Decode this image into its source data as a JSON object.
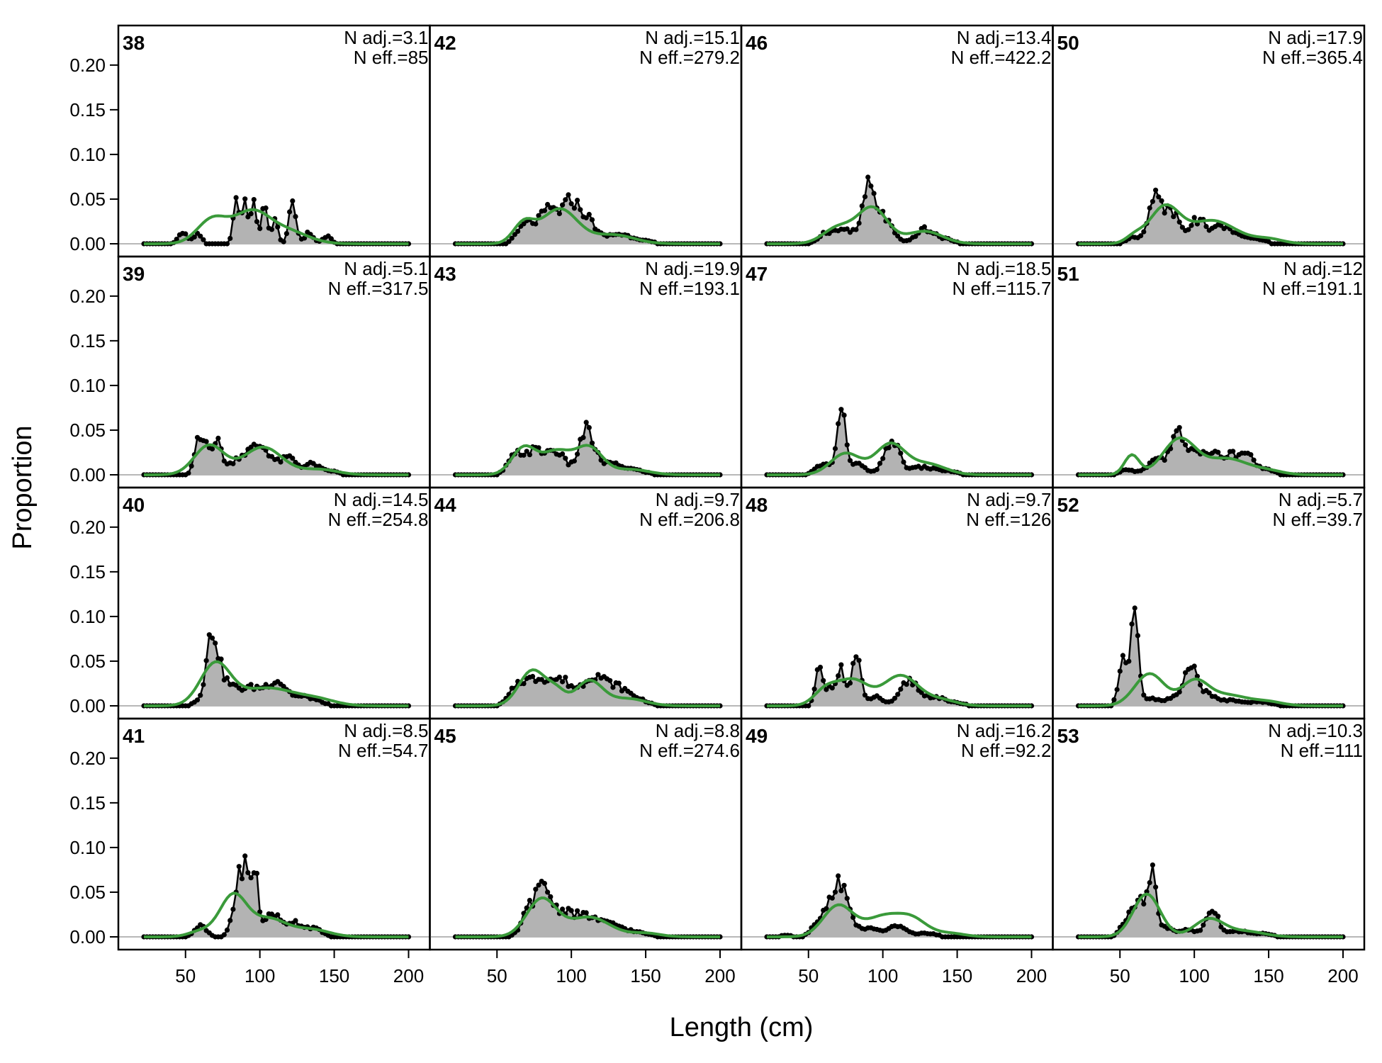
{
  "chart_data": {
    "type": "line",
    "xlabel": "Length (cm)",
    "ylabel": "Proportion",
    "xlim": [
      22,
      200
    ],
    "ylim": [
      0,
      0.23
    ],
    "x_ticks": [
      50,
      100,
      150,
      200
    ],
    "x_tick_labels": [
      "50",
      "100",
      "150",
      "200"
    ],
    "y_ticks": [
      0,
      0.05,
      0.1,
      0.15,
      0.2
    ],
    "y_tick_labels": [
      "0.00",
      "0.05",
      "0.10",
      "0.15",
      "0.20"
    ],
    "panel_columns": 4,
    "panel_rows": 4,
    "colors": {
      "observed_fill": "#b3b3b3",
      "observed_line": "#000000",
      "expected_line": "#3a9a3a",
      "zero_line": "#b8b8b8",
      "frame": "#000000"
    },
    "panels": [
      {
        "id": "38",
        "n_adj": "N adj.=3.1",
        "n_eff": "N eff.=85",
        "observed_peaks": [
          [
            48,
            0.012,
            3
          ],
          [
            58,
            0.01,
            3
          ],
          [
            84,
            0.05,
            2
          ],
          [
            90,
            0.048,
            2
          ],
          [
            96,
            0.042,
            2
          ],
          [
            103,
            0.04,
            2
          ],
          [
            110,
            0.028,
            2
          ],
          [
            122,
            0.042,
            2.5
          ],
          [
            133,
            0.012,
            3
          ],
          [
            145,
            0.008,
            3
          ]
        ],
        "expected_peaks": [
          [
            68,
            0.027,
            10
          ],
          [
            94,
            0.034,
            12
          ],
          [
            118,
            0.014,
            14
          ]
        ]
      },
      {
        "id": "39",
        "n_adj": "N adj.=5.1",
        "n_eff": "N eff.=317.5",
        "observed_peaks": [
          [
            58,
            0.025,
            2.5
          ],
          [
            64,
            0.035,
            4
          ],
          [
            72,
            0.03,
            3
          ],
          [
            85,
            0.014,
            6
          ],
          [
            100,
            0.032,
            8
          ],
          [
            120,
            0.018,
            5
          ],
          [
            135,
            0.012,
            5
          ],
          [
            148,
            0.004,
            5
          ]
        ],
        "expected_peaks": [
          [
            66,
            0.033,
            10
          ],
          [
            102,
            0.031,
            13
          ],
          [
            140,
            0.006,
            12
          ]
        ]
      },
      {
        "id": "40",
        "n_adj": "N adj.=14.5",
        "n_eff": "N eff.=254.8",
        "observed_peaks": [
          [
            68,
            0.058,
            3.5
          ],
          [
            72,
            0.03,
            8
          ],
          [
            95,
            0.02,
            10
          ],
          [
            112,
            0.022,
            6
          ],
          [
            130,
            0.01,
            9
          ]
        ],
        "expected_peaks": [
          [
            70,
            0.045,
            10
          ],
          [
            105,
            0.02,
            20
          ],
          [
            140,
            0.005,
            12
          ]
        ]
      },
      {
        "id": "41",
        "n_adj": "N adj.=8.5",
        "n_eff": "N eff.=54.7",
        "observed_peaks": [
          [
            60,
            0.012,
            4
          ],
          [
            86,
            0.055,
            4
          ],
          [
            91,
            0.05,
            3
          ],
          [
            97,
            0.07,
            2
          ],
          [
            108,
            0.027,
            5
          ],
          [
            122,
            0.016,
            5
          ],
          [
            135,
            0.01,
            6
          ]
        ],
        "expected_peaks": [
          [
            60,
            0.006,
            8
          ],
          [
            82,
            0.046,
            9
          ],
          [
            106,
            0.02,
            12
          ],
          [
            135,
            0.008,
            12
          ]
        ]
      },
      {
        "id": "42",
        "n_adj": "N adj.=15.1",
        "n_eff": "N eff.=279.2",
        "observed_peaks": [
          [
            70,
            0.022,
            6
          ],
          [
            85,
            0.036,
            6
          ],
          [
            100,
            0.046,
            6
          ],
          [
            112,
            0.022,
            5
          ],
          [
            130,
            0.01,
            8
          ],
          [
            145,
            0.004,
            8
          ]
        ],
        "expected_peaks": [
          [
            68,
            0.022,
            7
          ],
          [
            92,
            0.039,
            12
          ],
          [
            128,
            0.01,
            14
          ]
        ]
      },
      {
        "id": "43",
        "n_adj": "N adj.=19.9",
        "n_eff": "N eff.=193.1",
        "observed_peaks": [
          [
            62,
            0.018,
            5
          ],
          [
            75,
            0.026,
            7
          ],
          [
            90,
            0.024,
            6
          ],
          [
            110,
            0.048,
            5
          ],
          [
            125,
            0.012,
            8
          ],
          [
            142,
            0.005,
            8
          ]
        ],
        "expected_peaks": [
          [
            68,
            0.03,
            8
          ],
          [
            90,
            0.026,
            10
          ],
          [
            112,
            0.03,
            9
          ],
          [
            140,
            0.006,
            12
          ]
        ]
      },
      {
        "id": "44",
        "n_adj": "N adj.=9.7",
        "n_eff": "N eff.=206.8",
        "observed_peaks": [
          [
            65,
            0.022,
            6
          ],
          [
            80,
            0.03,
            8
          ],
          [
            95,
            0.022,
            6
          ],
          [
            115,
            0.034,
            8
          ],
          [
            132,
            0.018,
            7
          ],
          [
            146,
            0.006,
            6
          ]
        ],
        "expected_peaks": [
          [
            74,
            0.04,
            9
          ],
          [
            90,
            0.014,
            6
          ],
          [
            112,
            0.028,
            9
          ],
          [
            138,
            0.008,
            12
          ]
        ]
      },
      {
        "id": "45",
        "n_adj": "N adj.=8.8",
        "n_eff": "N eff.=274.6",
        "observed_peaks": [
          [
            72,
            0.03,
            5
          ],
          [
            82,
            0.05,
            5
          ],
          [
            95,
            0.025,
            6
          ],
          [
            110,
            0.022,
            8
          ],
          [
            128,
            0.012,
            8
          ],
          [
            145,
            0.004,
            8
          ]
        ],
        "expected_peaks": [
          [
            80,
            0.042,
            10
          ],
          [
            112,
            0.022,
            14
          ],
          [
            150,
            0.004,
            10
          ]
        ]
      },
      {
        "id": "46",
        "n_adj": "N adj.=13.4",
        "n_eff": "N eff.=422.2",
        "observed_peaks": [
          [
            62,
            0.012,
            5
          ],
          [
            75,
            0.016,
            6
          ],
          [
            90,
            0.056,
            4
          ],
          [
            100,
            0.03,
            6
          ],
          [
            128,
            0.016,
            6
          ],
          [
            142,
            0.005,
            6
          ]
        ],
        "expected_peaks": [
          [
            70,
            0.018,
            10
          ],
          [
            93,
            0.04,
            10
          ],
          [
            128,
            0.014,
            12
          ]
        ]
      },
      {
        "id": "47",
        "n_adj": "N adj.=18.5",
        "n_eff": "N eff.=115.7",
        "observed_peaks": [
          [
            60,
            0.012,
            5
          ],
          [
            72,
            0.065,
            3
          ],
          [
            82,
            0.012,
            6
          ],
          [
            106,
            0.038,
            5
          ],
          [
            125,
            0.008,
            8
          ],
          [
            142,
            0.004,
            8
          ]
        ],
        "expected_peaks": [
          [
            75,
            0.024,
            10
          ],
          [
            105,
            0.034,
            10
          ],
          [
            130,
            0.012,
            12
          ]
        ]
      },
      {
        "id": "48",
        "n_adj": "N adj.=9.7",
        "n_eff": "N eff.=126",
        "observed_peaks": [
          [
            57,
            0.038,
            2.5
          ],
          [
            65,
            0.02,
            4
          ],
          [
            72,
            0.035,
            3
          ],
          [
            82,
            0.055,
            3
          ],
          [
            95,
            0.01,
            5
          ],
          [
            118,
            0.028,
            6
          ],
          [
            135,
            0.01,
            6
          ],
          [
            150,
            0.003,
            6
          ]
        ],
        "expected_peaks": [
          [
            62,
            0.018,
            8
          ],
          [
            80,
            0.028,
            10
          ],
          [
            112,
            0.034,
            12
          ],
          [
            140,
            0.006,
            10
          ]
        ]
      },
      {
        "id": "49",
        "n_adj": "N adj.=16.2",
        "n_eff": "N eff.=92.2",
        "observed_peaks": [
          [
            35,
            0.002,
            4
          ],
          [
            58,
            0.02,
            5
          ],
          [
            70,
            0.06,
            5
          ],
          [
            80,
            0.012,
            6
          ],
          [
            95,
            0.008,
            6
          ],
          [
            110,
            0.012,
            5
          ],
          [
            128,
            0.004,
            8
          ]
        ],
        "expected_peaks": [
          [
            70,
            0.035,
            10
          ],
          [
            100,
            0.022,
            12
          ],
          [
            120,
            0.018,
            10
          ],
          [
            145,
            0.004,
            10
          ]
        ]
      },
      {
        "id": "50",
        "n_adj": "N adj.=17.9",
        "n_eff": "N eff.=365.4",
        "observed_peaks": [
          [
            60,
            0.008,
            5
          ],
          [
            74,
            0.06,
            4
          ],
          [
            85,
            0.036,
            5
          ],
          [
            102,
            0.026,
            6
          ],
          [
            120,
            0.02,
            7
          ],
          [
            140,
            0.006,
            7
          ]
        ],
        "expected_peaks": [
          [
            60,
            0.008,
            6
          ],
          [
            80,
            0.04,
            10
          ],
          [
            112,
            0.026,
            16
          ],
          [
            150,
            0.005,
            10
          ]
        ]
      },
      {
        "id": "51",
        "n_adj": "N adj.=12",
        "n_eff": "N eff.=191.1",
        "observed_peaks": [
          [
            55,
            0.006,
            5
          ],
          [
            75,
            0.018,
            6
          ],
          [
            88,
            0.048,
            4
          ],
          [
            100,
            0.028,
            5
          ],
          [
            112,
            0.025,
            5
          ],
          [
            125,
            0.022,
            5
          ],
          [
            136,
            0.026,
            4
          ],
          [
            148,
            0.006,
            6
          ]
        ],
        "expected_peaks": [
          [
            58,
            0.022,
            5
          ],
          [
            90,
            0.04,
            11
          ],
          [
            122,
            0.018,
            14
          ],
          [
            150,
            0.004,
            10
          ]
        ]
      },
      {
        "id": "52",
        "n_adj": "N adj.=5.7",
        "n_eff": "N eff.=39.7",
        "observed_peaks": [
          [
            52,
            0.048,
            3
          ],
          [
            60,
            0.098,
            2.5
          ],
          [
            70,
            0.008,
            6
          ],
          [
            88,
            0.01,
            6
          ],
          [
            98,
            0.045,
            4
          ],
          [
            108,
            0.012,
            6
          ],
          [
            125,
            0.006,
            8
          ],
          [
            145,
            0.004,
            8
          ]
        ],
        "expected_peaks": [
          [
            70,
            0.036,
            10
          ],
          [
            100,
            0.026,
            9
          ],
          [
            122,
            0.012,
            14
          ],
          [
            150,
            0.004,
            10
          ]
        ]
      },
      {
        "id": "53",
        "n_adj": "N adj.=10.3",
        "n_eff": "N eff.=111",
        "observed_peaks": [
          [
            55,
            0.02,
            4
          ],
          [
            64,
            0.04,
            4
          ],
          [
            72,
            0.075,
            2.5
          ],
          [
            80,
            0.01,
            5
          ],
          [
            96,
            0.008,
            6
          ],
          [
            112,
            0.032,
            4
          ],
          [
            128,
            0.006,
            8
          ],
          [
            145,
            0.003,
            8
          ]
        ],
        "expected_peaks": [
          [
            68,
            0.048,
            9
          ],
          [
            110,
            0.02,
            10
          ],
          [
            135,
            0.006,
            12
          ]
        ]
      }
    ]
  }
}
